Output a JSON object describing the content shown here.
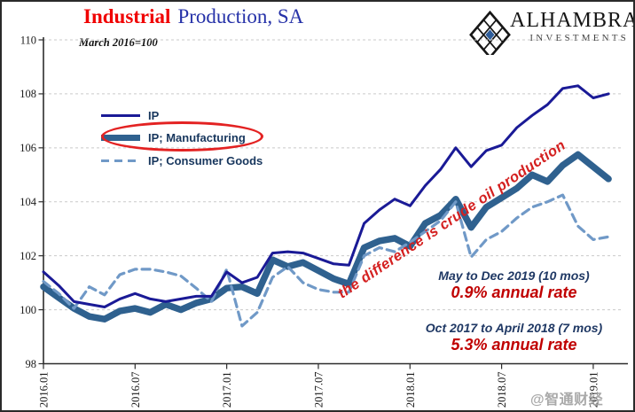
{
  "header": {
    "title_accent": "Industrial",
    "title_rest": "Production, SA",
    "logo_text": "ALHAMBRA",
    "logo_subtext": "INVESTMENTS"
  },
  "subtitle": "March 2016=100",
  "legend": {
    "items": [
      {
        "label": "IP"
      },
      {
        "label": "IP; Manufacturing"
      },
      {
        "label": "IP; Consumer Goods"
      }
    ]
  },
  "annotations": {
    "diagonal": "the difference is crude oil production",
    "callout1_line1": "May to Dec 2019 (10 mos)",
    "callout1_line2": "0.9% annual rate",
    "callout2_line1": "Oct 2017 to April 2018 (7 mos)",
    "callout2_line2": "5.3% annual rate"
  },
  "watermark": "@智通财经APP",
  "colors": {
    "ip": "#1a1a96",
    "manufacturing": "#2f618f",
    "consumer": "#7099c7",
    "title_red": "#f00000",
    "title_blue": "#2531a8",
    "callout_navy": "#1f3864",
    "callout_red": "#c00000",
    "diagonal_red": "#d42020",
    "ellipse_red": "#e32222",
    "legend_text": "#17365d"
  },
  "chart_data": {
    "type": "line",
    "title": "Industrial Production, SA",
    "note": "March 2016=100",
    "ylim": [
      98,
      110
    ],
    "y_ticks": [
      98,
      100,
      102,
      104,
      106,
      108,
      110
    ],
    "x_tick_labels": [
      "2016.01",
      "2016.07",
      "2017.01",
      "2017.07",
      "2018.01",
      "2018.07",
      "2019.01"
    ],
    "x_tick_positions": [
      0,
      6,
      12,
      18,
      24,
      30,
      36
    ],
    "grid": "horizontal-dashed",
    "legend_position": "upper-left-inside",
    "x": [
      "2016.01",
      "2016.02",
      "2016.03",
      "2016.04",
      "2016.05",
      "2016.06",
      "2016.07",
      "2016.08",
      "2016.09",
      "2016.10",
      "2016.11",
      "2016.12",
      "2017.01",
      "2017.02",
      "2017.03",
      "2017.04",
      "2017.05",
      "2017.06",
      "2017.07",
      "2017.08",
      "2017.09",
      "2017.10",
      "2017.11",
      "2017.12",
      "2018.01",
      "2018.02",
      "2018.03",
      "2018.04",
      "2018.05",
      "2018.06",
      "2018.07",
      "2018.08",
      "2018.09",
      "2018.10",
      "2018.11",
      "2018.12",
      "2019.01",
      "2019.02"
    ],
    "series": [
      {
        "name": "IP",
        "id": "ip-line",
        "style": "solid-thin",
        "color_key": "ip",
        "z": 3,
        "values": [
          101.4,
          100.9,
          100.3,
          100.2,
          100.1,
          100.4,
          100.6,
          100.4,
          100.3,
          100.4,
          100.5,
          100.5,
          101.4,
          101.0,
          101.2,
          102.1,
          102.15,
          102.1,
          101.9,
          101.7,
          101.65,
          103.2,
          103.7,
          104.1,
          103.85,
          104.6,
          105.2,
          106.0,
          105.3,
          105.9,
          106.1,
          106.75,
          107.2,
          107.6,
          108.2,
          108.3,
          107.85,
          108.0
        ]
      },
      {
        "name": "IP; Manufacturing",
        "id": "manufacturing-line",
        "style": "solid-thick",
        "color_key": "manufacturing",
        "z": 1,
        "values": [
          100.85,
          100.45,
          100.05,
          99.75,
          99.65,
          99.95,
          100.05,
          99.9,
          100.2,
          100.0,
          100.25,
          100.4,
          100.8,
          100.85,
          100.6,
          101.85,
          101.6,
          101.75,
          101.45,
          101.15,
          100.95,
          102.3,
          102.55,
          102.65,
          102.35,
          103.2,
          103.5,
          104.1,
          103.05,
          103.8,
          104.15,
          104.5,
          105.0,
          104.75,
          105.35,
          105.75,
          105.3,
          104.85
        ]
      },
      {
        "name": "IP; Consumer Goods",
        "id": "consumer-goods-line",
        "style": "dashed",
        "color_key": "consumer",
        "z": 2,
        "values": [
          101.05,
          100.6,
          100.05,
          100.85,
          100.55,
          101.3,
          101.5,
          101.5,
          101.4,
          101.25,
          100.8,
          100.3,
          101.5,
          99.4,
          99.9,
          101.2,
          101.6,
          101.0,
          100.75,
          100.65,
          100.65,
          102.0,
          102.3,
          102.15,
          102.5,
          102.9,
          103.3,
          104.0,
          101.95,
          102.6,
          102.9,
          103.4,
          103.8,
          104.0,
          104.25,
          103.1,
          102.6,
          102.7
        ]
      }
    ]
  }
}
